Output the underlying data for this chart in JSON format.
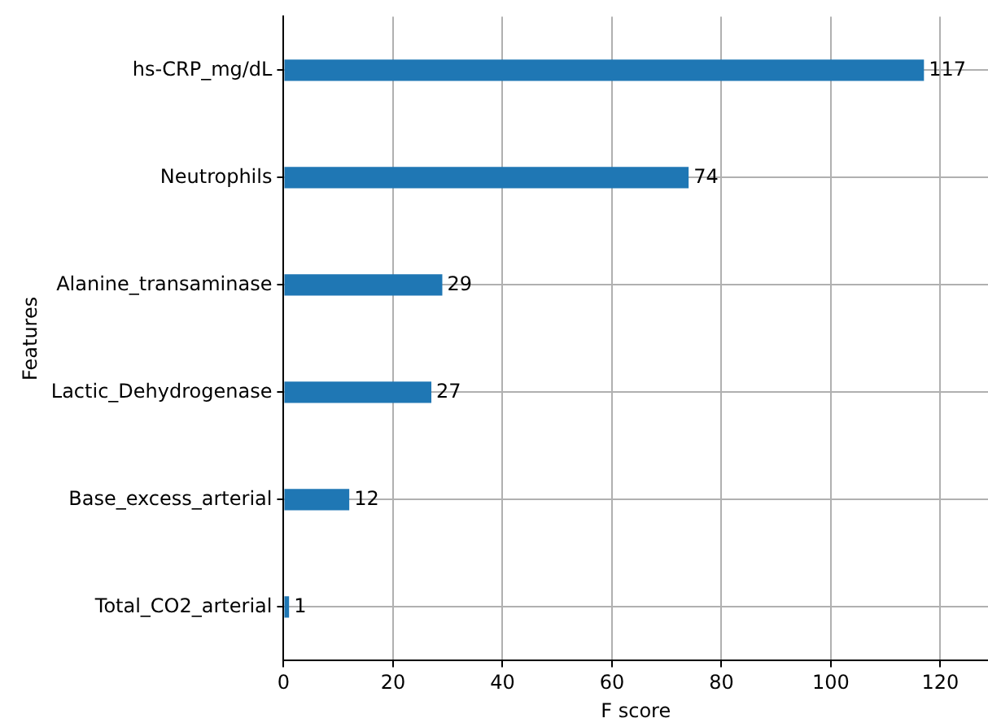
{
  "chart_data": {
    "type": "bar",
    "orientation": "horizontal",
    "xlabel": "F score",
    "ylabel": "Features",
    "categories": [
      "hs-CRP_mg/dL",
      "Neutrophils",
      "Alanine_transaminase",
      "Lactic_Dehydrogenase",
      "Base_excess_arterial",
      "Total_CO2_arterial"
    ],
    "values": [
      117,
      74,
      29,
      27,
      12,
      1
    ],
    "color": "#1f77b4",
    "xlim": [
      0,
      128.7
    ],
    "xticks": [
      0,
      20,
      40,
      60,
      80,
      100,
      120
    ],
    "grid": true,
    "data_labels": true,
    "legend": false
  }
}
